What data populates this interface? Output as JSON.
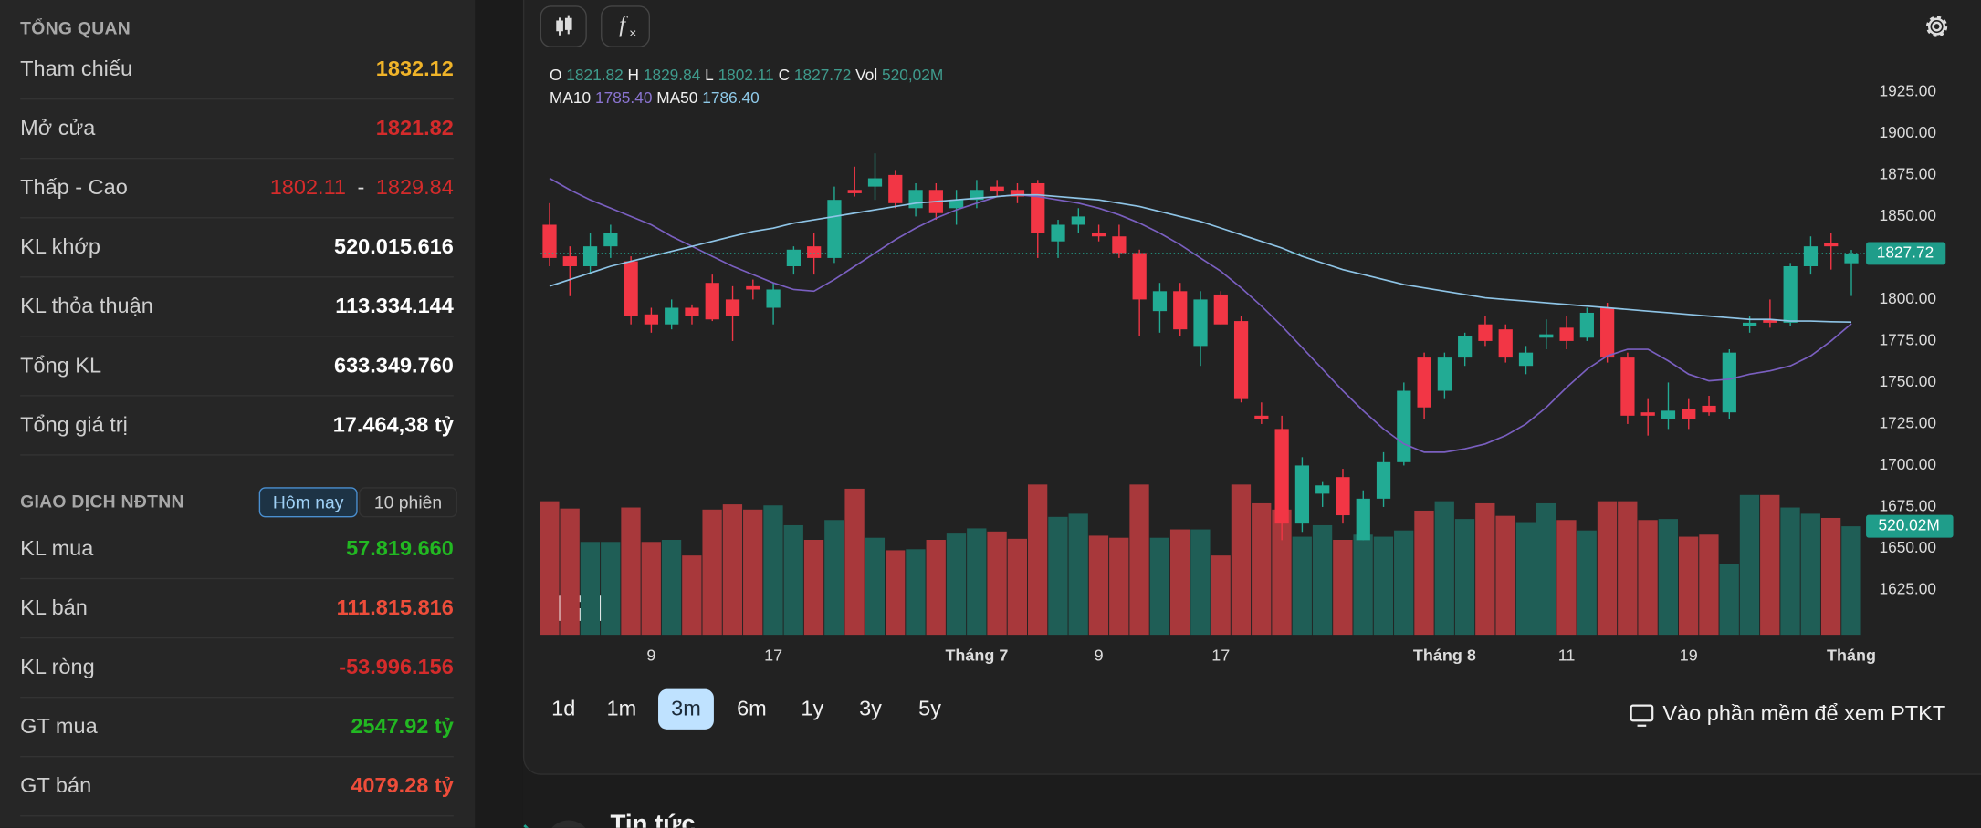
{
  "overview": {
    "title": "TỔNG QUAN",
    "rows": [
      {
        "label": "Tham chiếu",
        "value": "1832.12",
        "color": "#f0b429"
      },
      {
        "label": "Mở cửa",
        "value": "1821.82",
        "color": "#d42b2b"
      },
      {
        "label": "Thấp - Cao",
        "value": "1802.11",
        "separator": "-",
        "value2": "1829.84",
        "color": "#d42b2b"
      },
      {
        "label": "KL khớp",
        "value": "520.015.616",
        "color": "#ffffff"
      },
      {
        "label": "KL thỏa thuận",
        "value": "113.334.144",
        "color": "#ffffff"
      },
      {
        "label": "Tổng KL",
        "value": "633.349.760",
        "color": "#ffffff"
      },
      {
        "label": "Tổng giá trị",
        "value": "17.464,38 tỷ",
        "color": "#ffffff"
      }
    ]
  },
  "foreign": {
    "title": "GIAO DỊCH NĐTNN",
    "tabs": [
      "Hôm nay",
      "10 phiên"
    ],
    "active_tab": 0,
    "rows": [
      {
        "label": "KL mua",
        "value": "57.819.660",
        "color": "#22b822"
      },
      {
        "label": "KL bán",
        "value": "111.815.816",
        "color": "#ee4d3a"
      },
      {
        "label": "KL ròng",
        "value": "-53.996.156",
        "color": "#d42b2b"
      },
      {
        "label": "GT mua",
        "value": "2547.92 tỷ",
        "color": "#22b822"
      },
      {
        "label": "GT bán",
        "value": "4079.28 tỷ",
        "color": "#ee4d3a"
      }
    ]
  },
  "periods": [
    "1d",
    "1m",
    "3m",
    "6m",
    "1y",
    "3y",
    "5y"
  ],
  "active_period": 2,
  "link": "Vào phần mềm để xem PTKT",
  "news_title": "Tin tức",
  "chart_data": {
    "type": "candlestick",
    "legend_keys": [
      "O",
      "H",
      "L",
      "C",
      "Vol"
    ],
    "volume_label": "520,02M",
    "volume_tag": "520.02M",
    "up_color": "#22ab94",
    "down_color": "#f23645",
    "vol_up_color": "#1f5e56",
    "vol_down_color": "#a8383b",
    "ylim": [
      1598,
      1950
    ],
    "y2lim": [
      0,
      2800
    ],
    "grid": false,
    "yticks": [
      {
        "value": 1625,
        "label": "1625.00"
      },
      {
        "value": 1650,
        "label": "1650.00"
      },
      {
        "value": 1675,
        "label": "1675.00"
      },
      {
        "value": 1700,
        "label": "1700.00"
      },
      {
        "value": 1725,
        "label": "1725.00"
      },
      {
        "value": 1750,
        "label": "1750.00"
      },
      {
        "value": 1775,
        "label": "1775.00"
      },
      {
        "value": 1800,
        "label": "1800.00"
      },
      {
        "value": 1825,
        "label": "1825.00"
      },
      {
        "value": 1850,
        "label": "1850.00"
      },
      {
        "value": 1875,
        "label": "1875.00"
      },
      {
        "value": 1900,
        "label": "1900.00"
      },
      {
        "value": 1925,
        "label": "1925.00"
      }
    ],
    "xlabels": [
      {
        "index": 5,
        "label": "9"
      },
      {
        "index": 11,
        "label": "17"
      },
      {
        "index": 21,
        "label": "Tháng 7"
      },
      {
        "index": 27,
        "label": "9"
      },
      {
        "index": 33,
        "label": "17"
      },
      {
        "index": 44,
        "label": "Tháng 8"
      },
      {
        "index": 50,
        "label": "11"
      },
      {
        "index": 56,
        "label": "19"
      },
      {
        "index": 64,
        "label": "Tháng"
      }
    ],
    "open": [
      1845,
      1826,
      1820,
      1832,
      1823,
      1791,
      1785,
      1795,
      1810,
      1800,
      1808,
      1795,
      1820,
      1832,
      1825,
      1866,
      1868,
      1875,
      1855,
      1866,
      1855,
      1860,
      1868,
      1866,
      1870,
      1835,
      1845,
      1840,
      1838,
      1828,
      1793,
      1805,
      1772,
      1803,
      1787,
      1730,
      1722,
      1665,
      1683,
      1693,
      1655,
      1680,
      1702,
      1765,
      1745,
      1765,
      1785,
      1782,
      1760,
      1777,
      1783,
      1777,
      1795,
      1765,
      1732,
      1728,
      1734,
      1736,
      1732,
      1784,
      1788,
      1786,
      1820,
      1834,
      1821.82
    ],
    "high": [
      1858,
      1832,
      1840,
      1845,
      1826,
      1795,
      1800,
      1797,
      1815,
      1808,
      1812,
      1810,
      1832,
      1840,
      1868,
      1880,
      1888,
      1878,
      1870,
      1870,
      1866,
      1872,
      1872,
      1870,
      1872,
      1848,
      1855,
      1845,
      1845,
      1830,
      1810,
      1810,
      1805,
      1805,
      1790,
      1738,
      1730,
      1705,
      1690,
      1698,
      1685,
      1708,
      1750,
      1768,
      1768,
      1780,
      1790,
      1785,
      1772,
      1788,
      1790,
      1795,
      1798,
      1768,
      1740,
      1750,
      1740,
      1742,
      1770,
      1790,
      1800,
      1822,
      1838,
      1840,
      1829.84
    ],
    "low": [
      1820,
      1802,
      1815,
      1825,
      1785,
      1780,
      1782,
      1785,
      1787,
      1775,
      1800,
      1785,
      1815,
      1815,
      1822,
      1862,
      1860,
      1855,
      1850,
      1848,
      1845,
      1855,
      1862,
      1858,
      1825,
      1825,
      1840,
      1835,
      1825,
      1778,
      1780,
      1778,
      1760,
      1785,
      1738,
      1725,
      1655,
      1660,
      1675,
      1665,
      1655,
      1675,
      1700,
      1728,
      1740,
      1760,
      1772,
      1762,
      1755,
      1770,
      1770,
      1775,
      1762,
      1725,
      1718,
      1722,
      1722,
      1730,
      1728,
      1780,
      1783,
      1784,
      1815,
      1818,
      1802.11
    ],
    "close": [
      1825,
      1820,
      1832,
      1840,
      1790,
      1785,
      1795,
      1790,
      1788,
      1790,
      1806,
      1806,
      1830,
      1825,
      1860,
      1864,
      1873,
      1858,
      1866,
      1852,
      1860,
      1866,
      1865,
      1862,
      1840,
      1845,
      1850,
      1838,
      1828,
      1800,
      1805,
      1782,
      1800,
      1785,
      1740,
      1728,
      1665,
      1700,
      1688,
      1670,
      1680,
      1702,
      1745,
      1735,
      1765,
      1778,
      1775,
      1765,
      1768,
      1779,
      1775,
      1792,
      1765,
      1730,
      1730,
      1733,
      1728,
      1732,
      1768,
      1786,
      1786,
      1820,
      1832,
      1832,
      1827.72
    ],
    "volume": [
      640,
      605,
      445,
      445,
      610,
      445,
      455,
      380,
      600,
      625,
      600,
      620,
      525,
      455,
      550,
      700,
      465,
      405,
      410,
      455,
      485,
      510,
      495,
      460,
      720,
      565,
      580,
      475,
      465,
      720,
      465,
      505,
      505,
      380,
      720,
      630,
      600,
      470,
      525,
      455,
      480,
      470,
      500,
      595,
      640,
      555,
      630,
      570,
      540,
      630,
      550,
      500,
      640,
      640,
      550,
      555,
      470,
      480,
      340,
      670,
      670,
      610,
      580,
      560,
      520.02
    ],
    "ma_series": [
      {
        "name": "MA10",
        "color": "#7a5fc0",
        "label_color": "#8a74d0",
        "last_label": "1785.40",
        "values": [
          1873,
          1866,
          1860,
          1855,
          1850,
          1845,
          1838,
          1832,
          1826,
          1820,
          1815,
          1810,
          1806,
          1805,
          1812,
          1820,
          1828,
          1836,
          1843,
          1849,
          1854,
          1858,
          1862,
          1863,
          1862,
          1860,
          1858,
          1855,
          1851,
          1846,
          1840,
          1833,
          1825,
          1817,
          1807,
          1796,
          1784,
          1771,
          1758,
          1745,
          1733,
          1722,
          1713,
          1708,
          1708,
          1710,
          1713,
          1718,
          1725,
          1735,
          1747,
          1758,
          1766,
          1770,
          1770,
          1763,
          1755,
          1751,
          1752,
          1755,
          1757,
          1760,
          1766,
          1775,
          1785.4
        ]
      },
      {
        "name": "MA50",
        "color": "#8ec4e6",
        "label_color": "#8ec9e8",
        "last_label": "1786.40",
        "values": [
          1808,
          1812,
          1816,
          1820,
          1823,
          1826,
          1829,
          1832,
          1835,
          1838,
          1841,
          1843,
          1846,
          1848,
          1850,
          1852,
          1854,
          1856,
          1858,
          1859,
          1860,
          1861,
          1862,
          1863,
          1863,
          1862,
          1861,
          1860,
          1858,
          1856,
          1853,
          1850,
          1847,
          1843,
          1839,
          1835,
          1831,
          1826,
          1822,
          1818,
          1815,
          1812,
          1809,
          1807,
          1805,
          1803,
          1801,
          1800,
          1799,
          1798,
          1797,
          1796,
          1795,
          1794,
          1793,
          1792,
          1791,
          1790,
          1789,
          1788,
          1788,
          1787,
          1787,
          1786.6,
          1786.4
        ]
      }
    ]
  }
}
